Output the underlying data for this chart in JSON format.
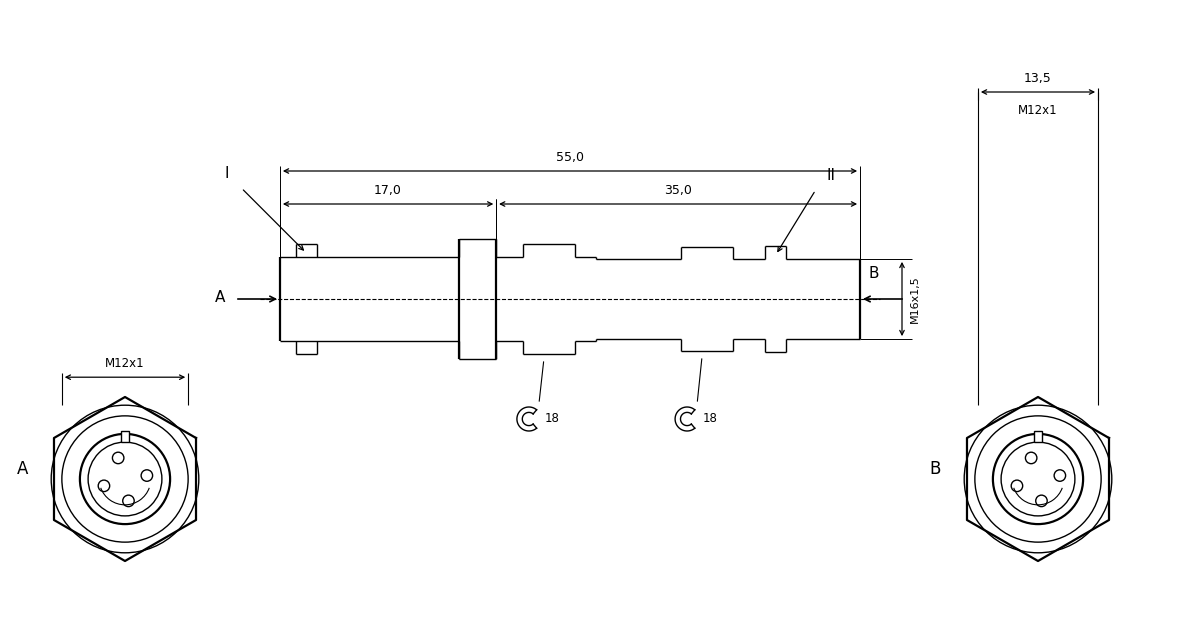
{
  "bg_color": "#ffffff",
  "line_color": "#000000",
  "fig_width": 12.0,
  "fig_height": 6.34,
  "dim_55": "55,0",
  "dim_17": "17,0",
  "dim_35": "35,0",
  "dim_m16": "M16x1,5",
  "dim_135": "13,5",
  "dim_m12x1": "M12x1",
  "dim_18": "18",
  "label_I": "I",
  "label_II": "II",
  "label_A": "A",
  "label_B": "B"
}
